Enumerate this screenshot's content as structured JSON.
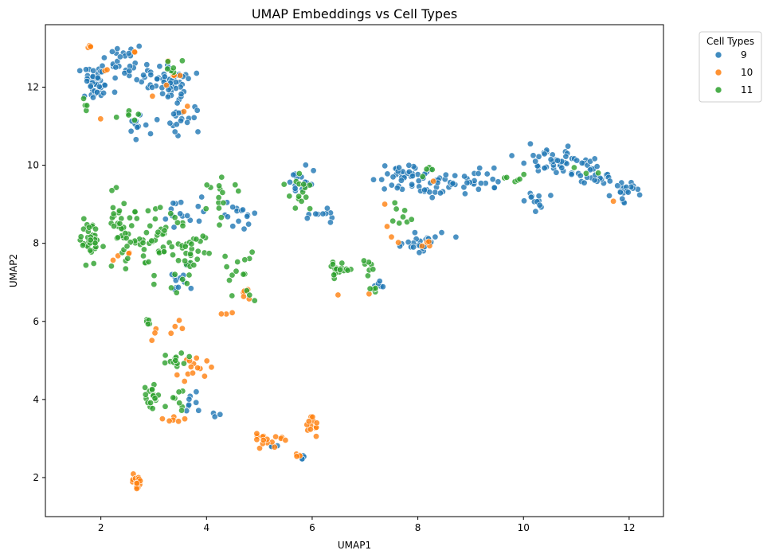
{
  "chart_data": {
    "type": "scatter",
    "title": "UMAP Embeddings vs Cell Types",
    "xlabel": "UMAP1",
    "ylabel": "UMAP2",
    "xlim": [
      0.95,
      12.65
    ],
    "ylim": [
      1.0,
      13.6
    ],
    "xticks": [
      2,
      4,
      6,
      8,
      10,
      12
    ],
    "yticks": [
      2,
      4,
      6,
      8,
      10,
      12
    ],
    "grid": false,
    "legend": {
      "title": "Cell Types",
      "placement": "outside-top-right"
    },
    "series": [
      {
        "name": "9",
        "color": "#1f77b4",
        "clusters": [
          {
            "center": [
              1.9,
              12.1
            ],
            "spread": [
              0.3,
              0.4
            ],
            "count": 45
          },
          {
            "center": [
              2.5,
              12.6
            ],
            "spread": [
              0.3,
              0.4
            ],
            "count": 28
          },
          {
            "center": [
              3.3,
              12.1
            ],
            "spread": [
              0.35,
              0.4
            ],
            "count": 55
          },
          {
            "center": [
              3.6,
              11.2
            ],
            "spread": [
              0.3,
              0.45
            ],
            "count": 20
          },
          {
            "center": [
              2.7,
              11.0
            ],
            "spread": [
              0.3,
              0.3
            ],
            "count": 12
          },
          {
            "center": [
              3.6,
              8.8
            ],
            "spread": [
              0.4,
              0.35
            ],
            "count": 15
          },
          {
            "center": [
              3.5,
              7.2
            ],
            "spread": [
              0.35,
              0.5
            ],
            "count": 12
          },
          {
            "center": [
              4.7,
              8.8
            ],
            "spread": [
              0.4,
              0.4
            ],
            "count": 15
          },
          {
            "center": [
              5.8,
              9.6
            ],
            "spread": [
              0.2,
              0.4
            ],
            "count": 15
          },
          {
            "center": [
              6.1,
              8.7
            ],
            "spread": [
              0.25,
              0.3
            ],
            "count": 10
          },
          {
            "center": [
              7.7,
              9.7
            ],
            "spread": [
              0.5,
              0.35
            ],
            "count": 40
          },
          {
            "center": [
              8.5,
              9.5
            ],
            "spread": [
              0.4,
              0.25
            ],
            "count": 25
          },
          {
            "center": [
              9.2,
              9.6
            ],
            "spread": [
              0.4,
              0.3
            ],
            "count": 18
          },
          {
            "center": [
              10.5,
              10.1
            ],
            "spread": [
              0.55,
              0.3
            ],
            "count": 40
          },
          {
            "center": [
              11.3,
              9.8
            ],
            "spread": [
              0.5,
              0.4
            ],
            "count": 30
          },
          {
            "center": [
              11.9,
              9.4
            ],
            "spread": [
              0.2,
              0.25
            ],
            "count": 22
          },
          {
            "center": [
              10.2,
              9.1
            ],
            "spread": [
              0.25,
              0.2
            ],
            "count": 12
          },
          {
            "center": [
              8.0,
              8.0
            ],
            "spread": [
              0.45,
              0.3
            ],
            "count": 25
          },
          {
            "center": [
              7.3,
              6.9
            ],
            "spread": [
              0.1,
              0.08
            ],
            "count": 5
          },
          {
            "center": [
              3.7,
              3.9
            ],
            "spread": [
              0.2,
              0.3
            ],
            "count": 8
          },
          {
            "center": [
              4.2,
              3.6
            ],
            "spread": [
              0.15,
              0.1
            ],
            "count": 3
          },
          {
            "center": [
              5.2,
              2.8
            ],
            "spread": [
              0.1,
              0.08
            ],
            "count": 3
          },
          {
            "center": [
              5.8,
              2.5
            ],
            "spread": [
              0.06,
              0.08
            ],
            "count": 4
          }
        ]
      },
      {
        "name": "10",
        "color": "#ff7f0e",
        "clusters": [
          {
            "center": [
              1.8,
              13.05
            ],
            "spread": [
              0.1,
              0.05
            ],
            "count": 4
          },
          {
            "center": [
              2.1,
              12.45
            ],
            "spread": [
              0.1,
              0.05
            ],
            "count": 2
          },
          {
            "center": [
              2.6,
              12.9
            ],
            "spread": [
              0.08,
              0.05
            ],
            "count": 2
          },
          {
            "center": [
              3.4,
              12.3
            ],
            "spread": [
              0.25,
              0.3
            ],
            "count": 5
          },
          {
            "center": [
              3.0,
              11.8
            ],
            "spread": [
              0.05,
              0.05
            ],
            "count": 1
          },
          {
            "center": [
              3.6,
              11.5
            ],
            "spread": [
              0.1,
              0.1
            ],
            "count": 2
          },
          {
            "center": [
              2.0,
              11.2
            ],
            "spread": [
              0.05,
              0.05
            ],
            "count": 1
          },
          {
            "center": [
              2.5,
              7.7
            ],
            "spread": [
              0.35,
              0.2
            ],
            "count": 4
          },
          {
            "center": [
              3.4,
              5.8
            ],
            "spread": [
              0.3,
              0.2
            ],
            "count": 4
          },
          {
            "center": [
              3.0,
              5.6
            ],
            "spread": [
              0.05,
              0.2
            ],
            "count": 3
          },
          {
            "center": [
              3.75,
              4.8
            ],
            "spread": [
              0.25,
              0.25
            ],
            "count": 14
          },
          {
            "center": [
              3.3,
              3.5
            ],
            "spread": [
              0.2,
              0.1
            ],
            "count": 6
          },
          {
            "center": [
              2.68,
              1.85
            ],
            "spread": [
              0.07,
              0.2
            ],
            "count": 14
          },
          {
            "center": [
              4.8,
              6.8
            ],
            "spread": [
              0.15,
              0.3
            ],
            "count": 6
          },
          {
            "center": [
              4.4,
              6.2
            ],
            "spread": [
              0.15,
              0.1
            ],
            "count": 3
          },
          {
            "center": [
              5.2,
              3.0
            ],
            "spread": [
              0.3,
              0.15
            ],
            "count": 16
          },
          {
            "center": [
              5.75,
              2.55
            ],
            "spread": [
              0.06,
              0.05
            ],
            "count": 4
          },
          {
            "center": [
              6.0,
              3.3
            ],
            "spread": [
              0.1,
              0.25
            ],
            "count": 12
          },
          {
            "center": [
              6.5,
              6.7
            ],
            "spread": [
              0.05,
              0.05
            ],
            "count": 1
          },
          {
            "center": [
              7.1,
              6.75
            ],
            "spread": [
              0.05,
              0.05
            ],
            "count": 1
          },
          {
            "center": [
              7.5,
              8.2
            ],
            "spread": [
              0.2,
              0.2
            ],
            "count": 3
          },
          {
            "center": [
              8.2,
              8.0
            ],
            "spread": [
              0.2,
              0.1
            ],
            "count": 4
          },
          {
            "center": [
              8.3,
              9.6
            ],
            "spread": [
              0.05,
              0.05
            ],
            "count": 1
          },
          {
            "center": [
              7.4,
              9.0
            ],
            "spread": [
              0.05,
              0.05
            ],
            "count": 1
          },
          {
            "center": [
              11.7,
              9.1
            ],
            "spread": [
              0.05,
              0.05
            ],
            "count": 1
          }
        ]
      },
      {
        "name": "11",
        "color": "#2ca02c",
        "clusters": [
          {
            "center": [
              1.75,
              11.5
            ],
            "spread": [
              0.1,
              0.25
            ],
            "count": 4
          },
          {
            "center": [
              2.5,
              11.3
            ],
            "spread": [
              0.25,
              0.35
            ],
            "count": 6
          },
          {
            "center": [
              3.3,
              12.5
            ],
            "spread": [
              0.3,
              0.25
            ],
            "count": 6
          },
          {
            "center": [
              1.8,
              8.0
            ],
            "spread": [
              0.15,
              0.4
            ],
            "count": 35
          },
          {
            "center": [
              2.4,
              8.2
            ],
            "spread": [
              0.35,
              0.8
            ],
            "count": 45
          },
          {
            "center": [
              3.1,
              8.0
            ],
            "spread": [
              0.4,
              0.8
            ],
            "count": 40
          },
          {
            "center": [
              3.7,
              7.8
            ],
            "spread": [
              0.3,
              0.8
            ],
            "count": 30
          },
          {
            "center": [
              4.3,
              9.2
            ],
            "spread": [
              0.3,
              0.4
            ],
            "count": 15
          },
          {
            "center": [
              4.6,
              7.2
            ],
            "spread": [
              0.3,
              0.6
            ],
            "count": 15
          },
          {
            "center": [
              5.8,
              9.3
            ],
            "spread": [
              0.25,
              0.5
            ],
            "count": 15
          },
          {
            "center": [
              6.5,
              7.3
            ],
            "spread": [
              0.2,
              0.2
            ],
            "count": 18
          },
          {
            "center": [
              7.0,
              7.6
            ],
            "spread": [
              0.25,
              0.3
            ],
            "count": 8
          },
          {
            "center": [
              7.7,
              8.8
            ],
            "spread": [
              0.3,
              0.4
            ],
            "count": 8
          },
          {
            "center": [
              8.2,
              9.8
            ],
            "spread": [
              0.2,
              0.2
            ],
            "count": 4
          },
          {
            "center": [
              9.8,
              9.6
            ],
            "spread": [
              0.3,
              0.3
            ],
            "count": 6
          },
          {
            "center": [
              7.2,
              6.8
            ],
            "spread": [
              0.1,
              0.08
            ],
            "count": 6
          },
          {
            "center": [
              2.9,
              6.0
            ],
            "spread": [
              0.08,
              0.15
            ],
            "count": 5
          },
          {
            "center": [
              3.5,
              5.0
            ],
            "spread": [
              0.3,
              0.25
            ],
            "count": 12
          },
          {
            "center": [
              2.95,
              4.1
            ],
            "spread": [
              0.15,
              0.3
            ],
            "count": 18
          },
          {
            "center": [
              3.5,
              4.0
            ],
            "spread": [
              0.2,
              0.3
            ],
            "count": 8
          },
          {
            "center": [
              11.2,
              10.0
            ],
            "spread": [
              0.2,
              0.2
            ],
            "count": 3
          }
        ]
      }
    ]
  }
}
